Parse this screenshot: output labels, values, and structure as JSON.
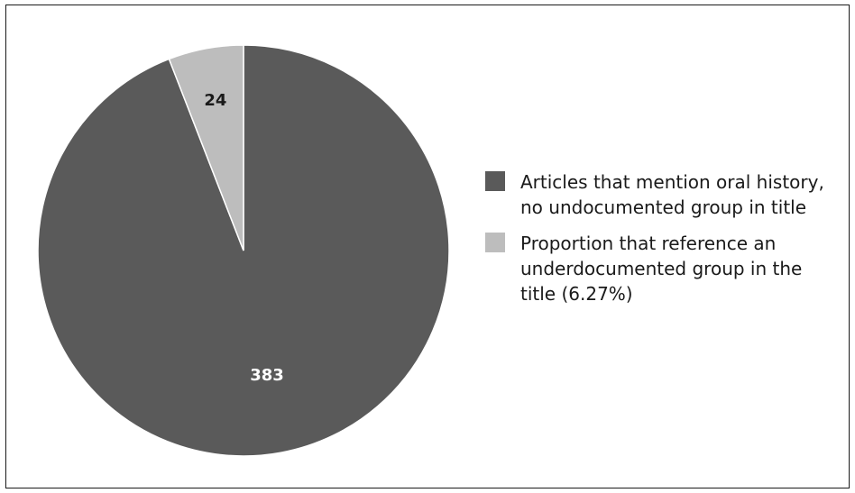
{
  "chart_data": {
    "type": "pie",
    "title": "",
    "slices": [
      {
        "label": "Articles that mention oral history, no undocumented group in title",
        "value": 383,
        "display": "383",
        "color": "#5a5a5a",
        "label_color": "#ffffff"
      },
      {
        "label": "Proportion that reference an underdocumented group in the title (6.27%)",
        "value": 24,
        "display": "24",
        "color": "#bdbdbd",
        "label_color": "#1a1a1a"
      }
    ],
    "legend_position": "right"
  }
}
